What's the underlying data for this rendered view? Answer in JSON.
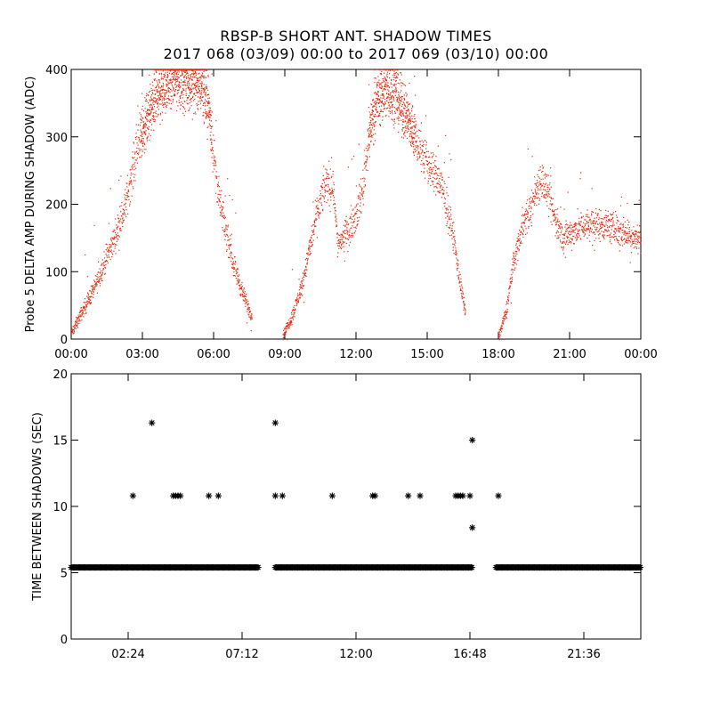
{
  "title_line1": "RBSP-B SHORT ANT. SHADOW TIMES",
  "title_line2": "2017 068 (03/09) 00:00 to 2017 069 (03/10) 00:00",
  "colors": {
    "amp_points": "#e8280c",
    "shadow_points": "#000000",
    "axes": "#000000"
  },
  "chart_data": [
    {
      "type": "scatter",
      "title": "",
      "xlabel": "",
      "ylabel": "Probe 5 DELTA AMP DURING SHADOW (ADC)",
      "x_unit": "hours since 03/09 00:00",
      "xlim": [
        0,
        24
      ],
      "ylim": [
        0,
        400
      ],
      "x_tick_labels": [
        "00:00",
        "03:00",
        "06:00",
        "09:00",
        "12:00",
        "15:00",
        "18:00",
        "21:00",
        "00:00"
      ],
      "x_tick_values": [
        0,
        3,
        6,
        9,
        12,
        15,
        18,
        21,
        24
      ],
      "y_tick_labels": [
        "0",
        "100",
        "200",
        "300",
        "400"
      ],
      "y_tick_values": [
        0,
        100,
        200,
        300,
        400
      ],
      "grid": false,
      "trend": [
        [
          0.0,
          10
        ],
        [
          0.5,
          45
        ],
        [
          1.0,
          80
        ],
        [
          1.4,
          115
        ],
        [
          1.8,
          150
        ],
        [
          2.2,
          190
        ],
        [
          2.5,
          240
        ],
        [
          2.8,
          290
        ],
        [
          3.2,
          330
        ],
        [
          3.6,
          360
        ],
        [
          4.0,
          380
        ],
        [
          4.5,
          385
        ],
        [
          5.0,
          382
        ],
        [
          5.5,
          378
        ],
        [
          5.8,
          340
        ],
        [
          6.0,
          270
        ],
        [
          6.2,
          210
        ],
        [
          6.5,
          160
        ],
        [
          6.8,
          115
        ],
        [
          7.1,
          80
        ],
        [
          7.4,
          50
        ],
        [
          7.6,
          35
        ],
        [
          8.9,
          5
        ],
        [
          9.3,
          35
        ],
        [
          9.7,
          80
        ],
        [
          10.0,
          130
        ],
        [
          10.3,
          180
        ],
        [
          10.6,
          220
        ],
        [
          10.8,
          235
        ],
        [
          11.0,
          225
        ],
        [
          11.1,
          200
        ],
        [
          11.2,
          140
        ],
        [
          11.6,
          160
        ],
        [
          12.0,
          185
        ],
        [
          12.3,
          230
        ],
        [
          12.5,
          300
        ],
        [
          12.8,
          350
        ],
        [
          13.2,
          370
        ],
        [
          13.6,
          365
        ],
        [
          14.0,
          340
        ],
        [
          14.5,
          300
        ],
        [
          15.0,
          260
        ],
        [
          15.5,
          235
        ],
        [
          15.8,
          200
        ],
        [
          16.1,
          150
        ],
        [
          16.3,
          100
        ],
        [
          16.5,
          55
        ],
        [
          16.6,
          40
        ],
        [
          18.0,
          5
        ],
        [
          18.3,
          40
        ],
        [
          18.6,
          110
        ],
        [
          19.0,
          170
        ],
        [
          19.3,
          190
        ],
        [
          19.6,
          225
        ],
        [
          19.8,
          240
        ],
        [
          20.1,
          210
        ],
        [
          20.4,
          175
        ],
        [
          20.7,
          150
        ],
        [
          21.1,
          160
        ],
        [
          21.5,
          168
        ],
        [
          22.0,
          172
        ],
        [
          22.5,
          170
        ],
        [
          23.0,
          162
        ],
        [
          23.5,
          155
        ],
        [
          24.0,
          150
        ]
      ]
    },
    {
      "type": "scatter",
      "title": "",
      "xlabel": "",
      "ylabel": "TIME BETWEEN SHADOWS (SEC)",
      "x_unit": "hours since 03/09 00:00",
      "xlim": [
        0,
        24
      ],
      "ylim": [
        0,
        20
      ],
      "x_tick_labels": [
        "02:24",
        "07:12",
        "12:00",
        "16:48",
        "21:36"
      ],
      "x_tick_values": [
        2.4,
        7.2,
        12.0,
        16.8,
        21.6
      ],
      "y_tick_labels": [
        "0",
        "5",
        "10",
        "15",
        "20"
      ],
      "y_tick_values": [
        0,
        5,
        10,
        15,
        20
      ],
      "grid": false,
      "baseline_value": 5.4,
      "baseline_segments": [
        [
          0.0,
          7.9
        ],
        [
          8.6,
          16.9
        ],
        [
          17.9,
          24.0
        ]
      ],
      "outliers": [
        [
          2.6,
          10.8
        ],
        [
          3.4,
          16.3
        ],
        [
          4.3,
          10.8
        ],
        [
          4.4,
          10.8
        ],
        [
          4.5,
          10.8
        ],
        [
          4.6,
          10.8
        ],
        [
          5.8,
          10.8
        ],
        [
          6.2,
          10.8
        ],
        [
          8.6,
          16.3
        ],
        [
          8.6,
          10.8
        ],
        [
          8.9,
          10.8
        ],
        [
          11.0,
          10.8
        ],
        [
          12.7,
          10.8
        ],
        [
          12.8,
          10.8
        ],
        [
          14.2,
          10.8
        ],
        [
          14.7,
          10.8
        ],
        [
          16.2,
          10.8
        ],
        [
          16.3,
          10.8
        ],
        [
          16.4,
          10.8
        ],
        [
          16.5,
          10.8
        ],
        [
          16.8,
          10.8
        ],
        [
          16.9,
          15.0
        ],
        [
          16.9,
          8.4
        ],
        [
          18.0,
          10.8
        ]
      ]
    }
  ]
}
